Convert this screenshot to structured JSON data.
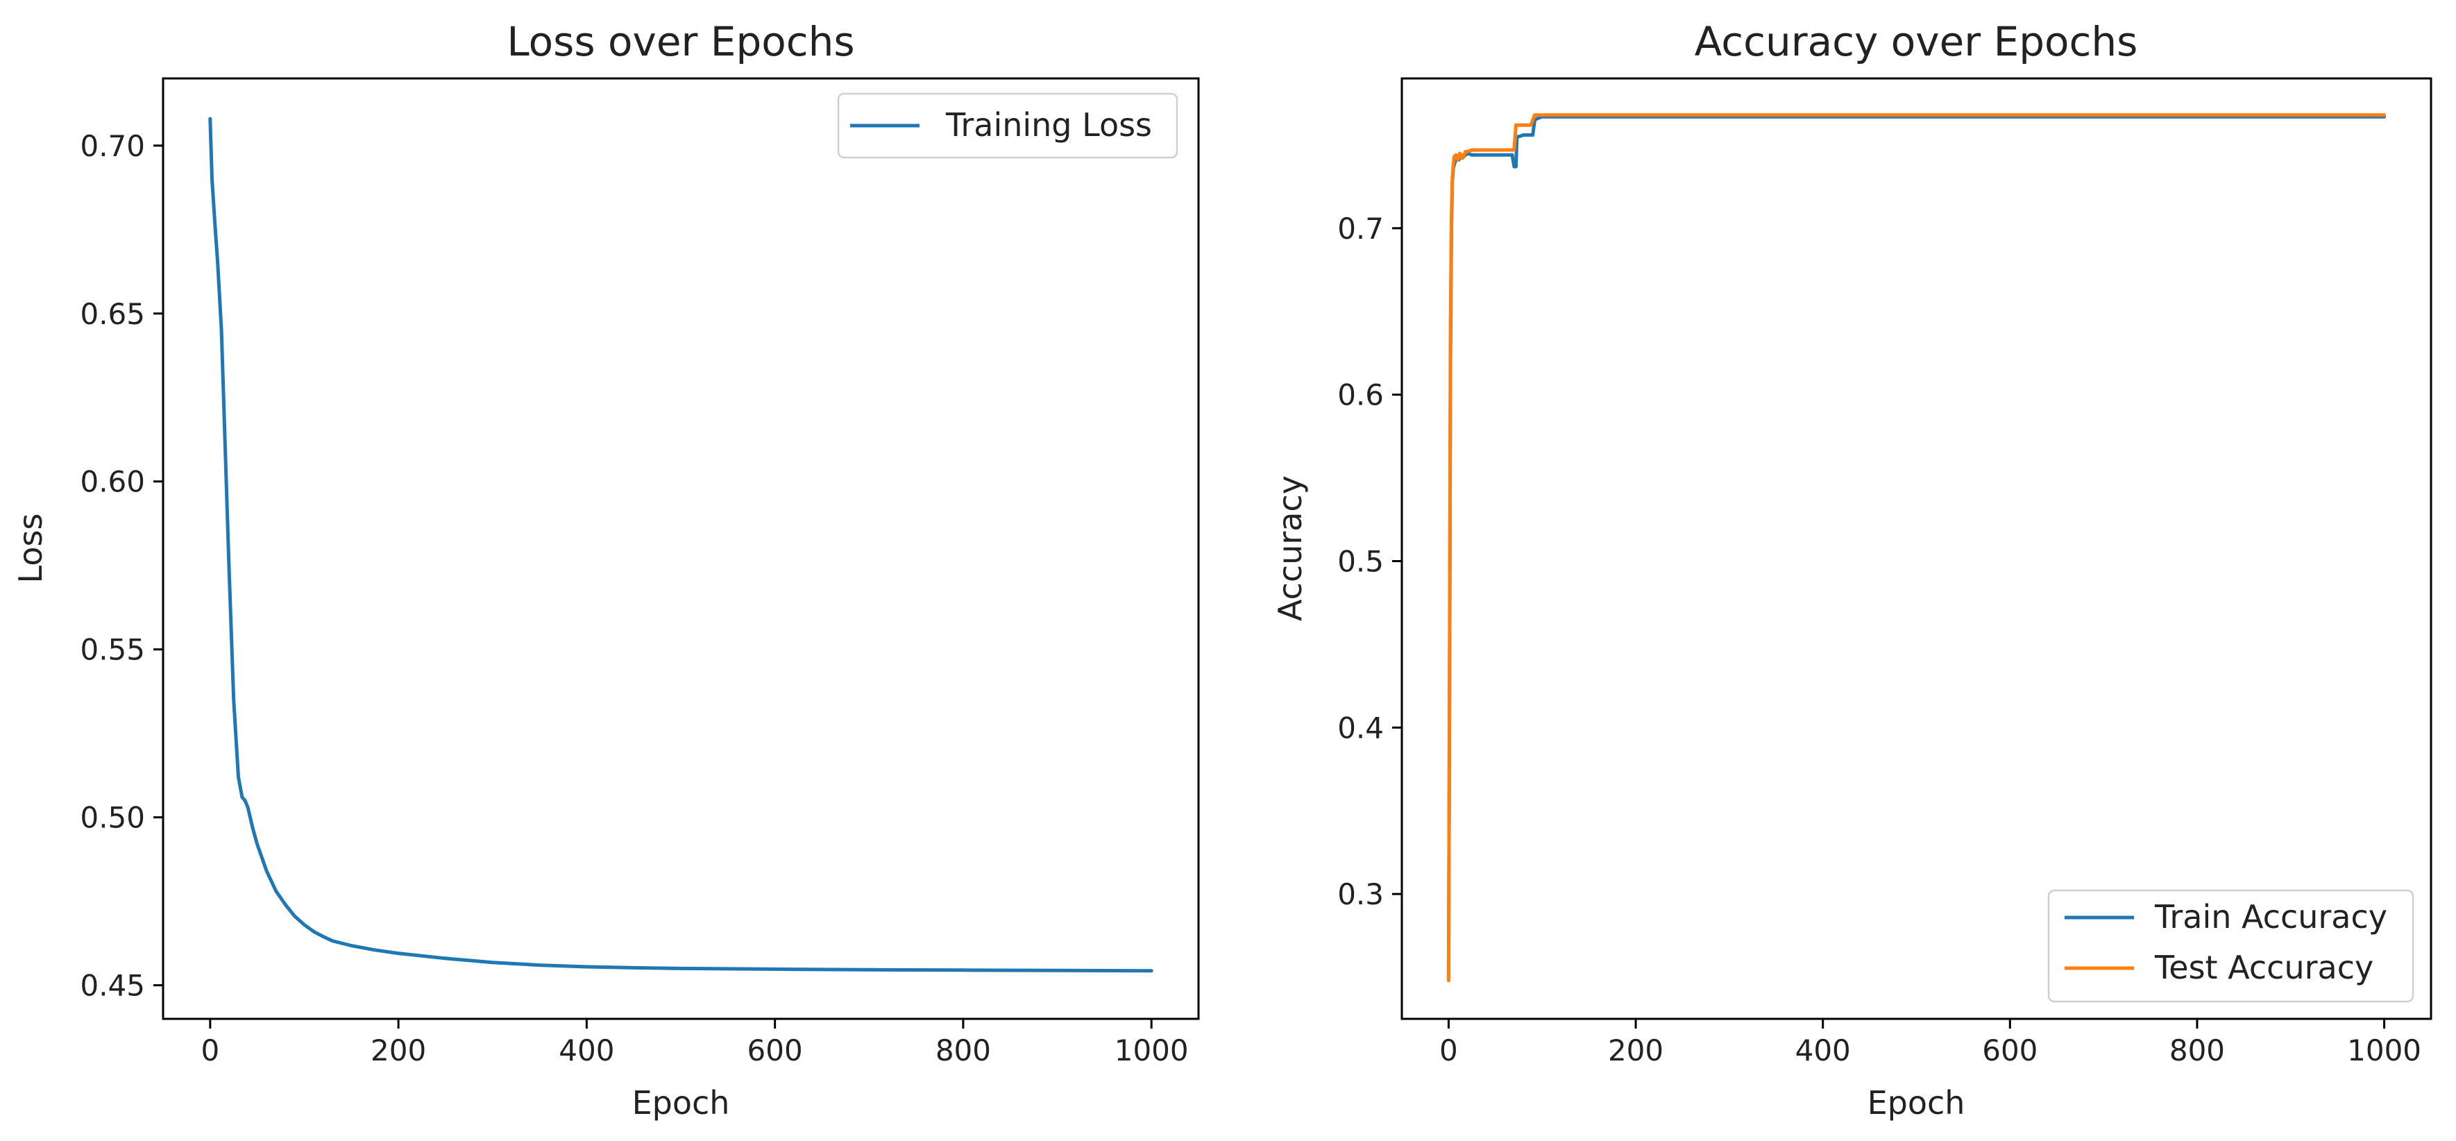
{
  "chart_data": [
    {
      "type": "line",
      "title": "Loss over Epochs",
      "xlabel": "Epoch",
      "ylabel": "Loss",
      "xlim": [
        -50,
        1050
      ],
      "ylim": [
        0.44,
        0.72
      ],
      "xticks": [
        0,
        200,
        400,
        600,
        800,
        1000
      ],
      "xtick_labels": [
        "0",
        "200",
        "400",
        "600",
        "800",
        "1000"
      ],
      "yticks": [
        0.45,
        0.5,
        0.55,
        0.6,
        0.65,
        0.7
      ],
      "ytick_labels": [
        "0.45",
        "0.50",
        "0.55",
        "0.60",
        "0.65",
        "0.70"
      ],
      "grid": false,
      "legend": "upper-right",
      "series": [
        {
          "name": "Training Loss",
          "color": "#1f77b4",
          "x": [
            0,
            2,
            5,
            8,
            12,
            16,
            20,
            25,
            30,
            34,
            37,
            40,
            45,
            50,
            55,
            60,
            70,
            80,
            90,
            100,
            110,
            120,
            130,
            150,
            175,
            200,
            250,
            300,
            350,
            400,
            450,
            500,
            600,
            700,
            800,
            900,
            1000
          ],
          "y": [
            0.708,
            0.69,
            0.677,
            0.665,
            0.645,
            0.61,
            0.575,
            0.535,
            0.512,
            0.506,
            0.505,
            0.503,
            0.497,
            0.492,
            0.488,
            0.484,
            0.478,
            0.474,
            0.4705,
            0.468,
            0.466,
            0.4645,
            0.4632,
            0.4618,
            0.4605,
            0.4595,
            0.458,
            0.4568,
            0.456,
            0.4555,
            0.4552,
            0.455,
            0.4548,
            0.4546,
            0.4545,
            0.4544,
            0.4543
          ]
        }
      ]
    },
    {
      "type": "line",
      "title": "Accuracy over Epochs",
      "xlabel": "Epoch",
      "ylabel": "Accuracy",
      "xlim": [
        -50,
        1050
      ],
      "ylim": [
        0.225,
        0.79
      ],
      "xticks": [
        0,
        200,
        400,
        600,
        800,
        1000
      ],
      "xtick_labels": [
        "0",
        "200",
        "400",
        "600",
        "800",
        "1000"
      ],
      "yticks": [
        0.3,
        0.4,
        0.5,
        0.6,
        0.7
      ],
      "ytick_labels": [
        "0.3",
        "0.4",
        "0.5",
        "0.6",
        "0.7"
      ],
      "grid": false,
      "legend": "lower-right",
      "series": [
        {
          "name": "Train Accuracy",
          "color": "#1f77b4",
          "x": [
            0,
            1,
            2,
            3,
            4,
            5,
            7,
            9,
            11,
            13,
            16,
            20,
            25,
            30,
            40,
            50,
            60,
            68,
            70,
            72,
            73,
            75,
            80,
            85,
            90,
            92,
            95,
            100,
            200,
            400,
            600,
            800,
            1000
          ],
          "y": [
            0.25,
            0.43,
            0.62,
            0.7,
            0.728,
            0.736,
            0.74,
            0.743,
            0.741,
            0.744,
            0.743,
            0.745,
            0.744,
            0.744,
            0.744,
            0.744,
            0.744,
            0.744,
            0.737,
            0.737,
            0.755,
            0.755,
            0.756,
            0.756,
            0.756,
            0.765,
            0.766,
            0.767,
            0.767,
            0.767,
            0.767,
            0.767,
            0.767
          ]
        },
        {
          "name": "Test Accuracy",
          "color": "#ff7f0e",
          "x": [
            0,
            1,
            2,
            3,
            4,
            5,
            6,
            8,
            10,
            12,
            15,
            18,
            20,
            25,
            30,
            40,
            50,
            60,
            70,
            72,
            74,
            80,
            88,
            92,
            95,
            100,
            200,
            400,
            600,
            800,
            1000
          ],
          "y": [
            0.248,
            0.44,
            0.64,
            0.705,
            0.73,
            0.738,
            0.743,
            0.744,
            0.741,
            0.745,
            0.742,
            0.746,
            0.746,
            0.747,
            0.747,
            0.747,
            0.747,
            0.747,
            0.747,
            0.762,
            0.762,
            0.762,
            0.762,
            0.768,
            0.768,
            0.768,
            0.768,
            0.768,
            0.768,
            0.768,
            0.768
          ]
        }
      ]
    }
  ]
}
